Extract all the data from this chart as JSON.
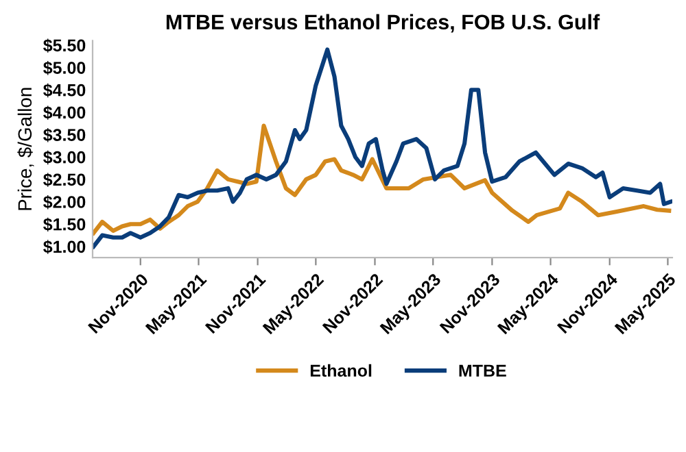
{
  "chart_data": {
    "type": "line",
    "title": "MTBE versus Ethanol Prices, FOB U.S. Gulf",
    "ylabel": "Price, $/Gallon",
    "xlim": [
      "2020-06-05",
      "2025-05-15"
    ],
    "xticks": [
      {
        "value": "2020-11-01",
        "label": "Nov-2020"
      },
      {
        "value": "2021-05-01",
        "label": "May-2021"
      },
      {
        "value": "2021-11-01",
        "label": "Nov-2021"
      },
      {
        "value": "2022-05-01",
        "label": "May-2022"
      },
      {
        "value": "2022-11-01",
        "label": "Nov-2022"
      },
      {
        "value": "2023-05-01",
        "label": "May-2023"
      },
      {
        "value": "2023-11-01",
        "label": "Nov-2023"
      },
      {
        "value": "2024-05-01",
        "label": "May-2024"
      },
      {
        "value": "2024-11-01",
        "label": "Nov-2024"
      },
      {
        "value": "2025-05-01",
        "label": "May-2025"
      }
    ],
    "ylim": [
      0.75,
      5.6
    ],
    "yticks": [
      {
        "value": 1,
        "label": "$1.00"
      },
      {
        "value": 1.5,
        "label": "$1.50"
      },
      {
        "value": 2,
        "label": "$2.00"
      },
      {
        "value": 2.5,
        "label": "$2.50"
      },
      {
        "value": 3,
        "label": "$3.00"
      },
      {
        "value": 3.5,
        "label": "$3.50"
      },
      {
        "value": 4,
        "label": "$4.00"
      },
      {
        "value": 4.5,
        "label": "$4.50"
      },
      {
        "value": 5,
        "label": "$5.00"
      },
      {
        "value": 5.5,
        "label": "$5.50"
      }
    ],
    "grid": false,
    "legend": "bottom",
    "marker": "none",
    "line_style": "solid",
    "series": [
      {
        "name": "Ethanol",
        "color": "#d4891c",
        "x": [
          "2020-06-08",
          "2020-07-05",
          "2020-08-08",
          "2020-09-05",
          "2020-10-01",
          "2020-11-01",
          "2020-12-01",
          "2021-01-01",
          "2021-01-28",
          "2021-02-28",
          "2021-03-28",
          "2021-04-28",
          "2021-05-28",
          "2021-06-28",
          "2021-08-01",
          "2021-08-31",
          "2021-09-28",
          "2021-10-28",
          "2021-11-20",
          "2021-12-28",
          "2022-01-28",
          "2022-02-25",
          "2022-04-01",
          "2022-05-01",
          "2022-05-30",
          "2022-06-28",
          "2022-07-19",
          "2022-08-25",
          "2022-09-22",
          "2022-10-24",
          "2022-12-07",
          "2023-02-15",
          "2023-04-01",
          "2023-06-25",
          "2023-08-07",
          "2023-10-10",
          "2023-11-01",
          "2024-01-03",
          "2024-02-22",
          "2024-03-19",
          "2024-05-30",
          "2024-06-25",
          "2024-08-07",
          "2024-09-26",
          "2024-11-23",
          "2025-02-15",
          "2025-03-29",
          "2025-05-05"
        ],
        "values": [
          1.3,
          1.55,
          1.35,
          1.45,
          1.5,
          1.5,
          1.6,
          1.4,
          1.55,
          1.7,
          1.9,
          2.0,
          2.3,
          2.7,
          2.5,
          2.45,
          2.4,
          2.45,
          3.7,
          2.9,
          2.3,
          2.15,
          2.5,
          2.6,
          2.9,
          2.95,
          2.7,
          2.6,
          2.5,
          2.95,
          2.3,
          2.3,
          2.5,
          2.6,
          2.3,
          2.48,
          2.2,
          1.8,
          1.55,
          1.7,
          1.85,
          2.2,
          2.0,
          1.7,
          1.78,
          1.9,
          1.82,
          1.8
        ]
      },
      {
        "name": "MTBE",
        "color": "#0a3d7a",
        "x": [
          "2020-06-08",
          "2020-07-05",
          "2020-08-08",
          "2020-09-05",
          "2020-10-01",
          "2020-11-01",
          "2020-12-01",
          "2021-01-01",
          "2021-01-28",
          "2021-02-28",
          "2021-03-28",
          "2021-04-28",
          "2021-05-28",
          "2021-06-28",
          "2021-08-01",
          "2021-08-16",
          "2021-09-07",
          "2021-09-28",
          "2021-10-28",
          "2021-11-28",
          "2021-12-28",
          "2022-01-28",
          "2022-02-25",
          "2022-03-12",
          "2022-04-01",
          "2022-05-01",
          "2022-06-06",
          "2022-06-28",
          "2022-07-19",
          "2022-08-10",
          "2022-09-01",
          "2022-09-22",
          "2022-10-13",
          "2022-11-04",
          "2022-11-25",
          "2022-12-07",
          "2023-01-07",
          "2023-01-28",
          "2023-03-10",
          "2023-04-10",
          "2023-05-07",
          "2023-06-04",
          "2023-07-16",
          "2023-08-07",
          "2023-08-28",
          "2023-09-19",
          "2023-10-10",
          "2023-11-01",
          "2023-12-13",
          "2024-01-25",
          "2024-03-16",
          "2024-05-13",
          "2024-06-25",
          "2024-08-07",
          "2024-09-19",
          "2024-10-10",
          "2024-11-01",
          "2024-12-13",
          "2025-01-25",
          "2025-03-07",
          "2025-04-07",
          "2025-04-19",
          "2025-05-10"
        ],
        "values": [
          1.0,
          1.25,
          1.2,
          1.2,
          1.3,
          1.2,
          1.3,
          1.45,
          1.65,
          2.15,
          2.1,
          2.2,
          2.25,
          2.25,
          2.3,
          2.0,
          2.2,
          2.5,
          2.6,
          2.5,
          2.6,
          2.9,
          3.6,
          3.4,
          3.6,
          4.6,
          5.4,
          4.8,
          3.7,
          3.4,
          3.0,
          2.8,
          3.3,
          3.4,
          2.7,
          2.4,
          2.9,
          3.3,
          3.4,
          3.2,
          2.5,
          2.7,
          2.8,
          3.3,
          4.5,
          4.5,
          3.1,
          2.45,
          2.55,
          2.9,
          3.1,
          2.6,
          2.85,
          2.75,
          2.55,
          2.65,
          2.1,
          2.3,
          2.25,
          2.2,
          2.4,
          1.95,
          2.0
        ]
      }
    ]
  }
}
